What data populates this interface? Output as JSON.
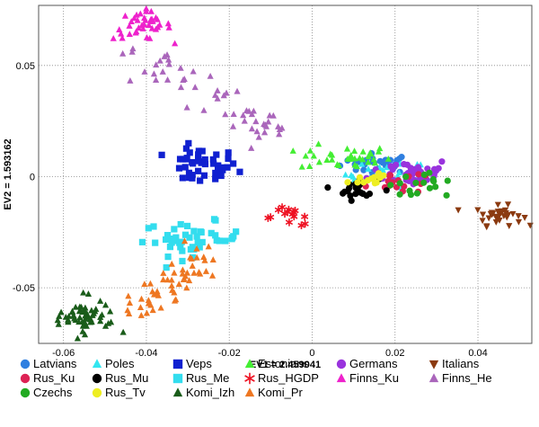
{
  "chart_data": {
    "type": "scatter",
    "xlabel": "EV1 = 2.459041",
    "ylabel": "EV2 = 1.593162",
    "xlim": [
      -0.066,
      0.053
    ],
    "ylim": [
      -0.075,
      0.077
    ],
    "x_ticks": [
      {
        "v": -0.06,
        "label": "-0.06"
      },
      {
        "v": -0.04,
        "label": "-0.04"
      },
      {
        "v": -0.02,
        "label": "-0.02"
      },
      {
        "v": 0,
        "label": "0"
      },
      {
        "v": 0.02,
        "label": "0.02"
      },
      {
        "v": 0.04,
        "label": "0.04"
      }
    ],
    "y_ticks": [
      {
        "v": 0.05,
        "label": "0.05"
      },
      {
        "v": 0,
        "label": "0"
      },
      {
        "v": -0.05,
        "label": "-0.05"
      }
    ],
    "grid": true,
    "legend_position": "bottom",
    "series": [
      {
        "name": "Latvians",
        "color": "#2f7fe0",
        "marker": "circle",
        "cx": 0.016,
        "cy": 0.006,
        "sx": 0.0045,
        "sy": 0.0022,
        "n": 30
      },
      {
        "name": "Poles",
        "color": "#33e6f0",
        "marker": "triangle-up",
        "cx": 0.018,
        "cy": 0.001,
        "sx": 0.005,
        "sy": 0.003,
        "n": 20
      },
      {
        "name": "Veps",
        "color": "#1020d0",
        "marker": "square",
        "cx": -0.027,
        "cy": 0.0045,
        "sx": 0.0045,
        "sy": 0.0042,
        "n": 45
      },
      {
        "name": "Estonians",
        "color": "#44ee33",
        "marker": "triangle-up",
        "cx": 0.008,
        "cy": 0.0085,
        "sx": 0.0055,
        "sy": 0.0028,
        "n": 35
      },
      {
        "name": "Germans",
        "color": "#9933dd",
        "marker": "circle",
        "cx": 0.024,
        "cy": 0.002,
        "sx": 0.005,
        "sy": 0.0032,
        "n": 40
      },
      {
        "name": "Italians",
        "color": "#8b3a10",
        "marker": "triangle-down",
        "cx": 0.045,
        "cy": -0.0175,
        "sx": 0.0028,
        "sy": 0.0022,
        "n": 35
      },
      {
        "name": "Rus_Ku",
        "color": "#dd2255",
        "marker": "circle",
        "cx": 0.019,
        "cy": -0.002,
        "sx": 0.004,
        "sy": 0.003,
        "n": 18
      },
      {
        "name": "Rus_Mu",
        "color": "#000000",
        "marker": "circle",
        "cx": 0.011,
        "cy": -0.0055,
        "sx": 0.0025,
        "sy": 0.0025,
        "n": 22
      },
      {
        "name": "Rus_Me",
        "color": "#33ddee",
        "marker": "square",
        "cx": -0.029,
        "cy": -0.028,
        "sx": 0.006,
        "sy": 0.0038,
        "n": 45
      },
      {
        "name": "Rus_HGDP",
        "color": "#ee1122",
        "marker": "asterisk",
        "cx": -0.005,
        "cy": -0.018,
        "sx": 0.0035,
        "sy": 0.0022,
        "n": 15
      },
      {
        "name": "Finns_Ku",
        "color": "#ee22cc",
        "marker": "triangle-up",
        "cx": -0.041,
        "cy": 0.068,
        "sx": 0.0035,
        "sy": 0.0032,
        "n": 40
      },
      {
        "name": "Finns_He",
        "color": "#aa66bb",
        "marker": "triangle-up",
        "cx": -0.026,
        "cy": 0.037,
        "sx": 0.0085,
        "sy": 0.0075,
        "n": 55
      },
      {
        "name": "Czechs",
        "color": "#22aa22",
        "marker": "circle",
        "cx": 0.026,
        "cy": -0.004,
        "sx": 0.004,
        "sy": 0.003,
        "n": 18
      },
      {
        "name": "Rus_Tv",
        "color": "#eeee22",
        "marker": "circle",
        "cx": 0.014,
        "cy": -0.001,
        "sx": 0.003,
        "sy": 0.0025,
        "n": 12
      },
      {
        "name": "Komi_Izh",
        "color": "#1a5c1a",
        "marker": "triangle-up",
        "cx": -0.055,
        "cy": -0.064,
        "sx": 0.0035,
        "sy": 0.0042,
        "n": 60
      },
      {
        "name": "Komi_Pr",
        "color": "#ee7722",
        "marker": "triangle-up",
        "cx": -0.035,
        "cy": -0.048,
        "sx": 0.0045,
        "sy": 0.0042,
        "n": 55
      }
    ]
  }
}
